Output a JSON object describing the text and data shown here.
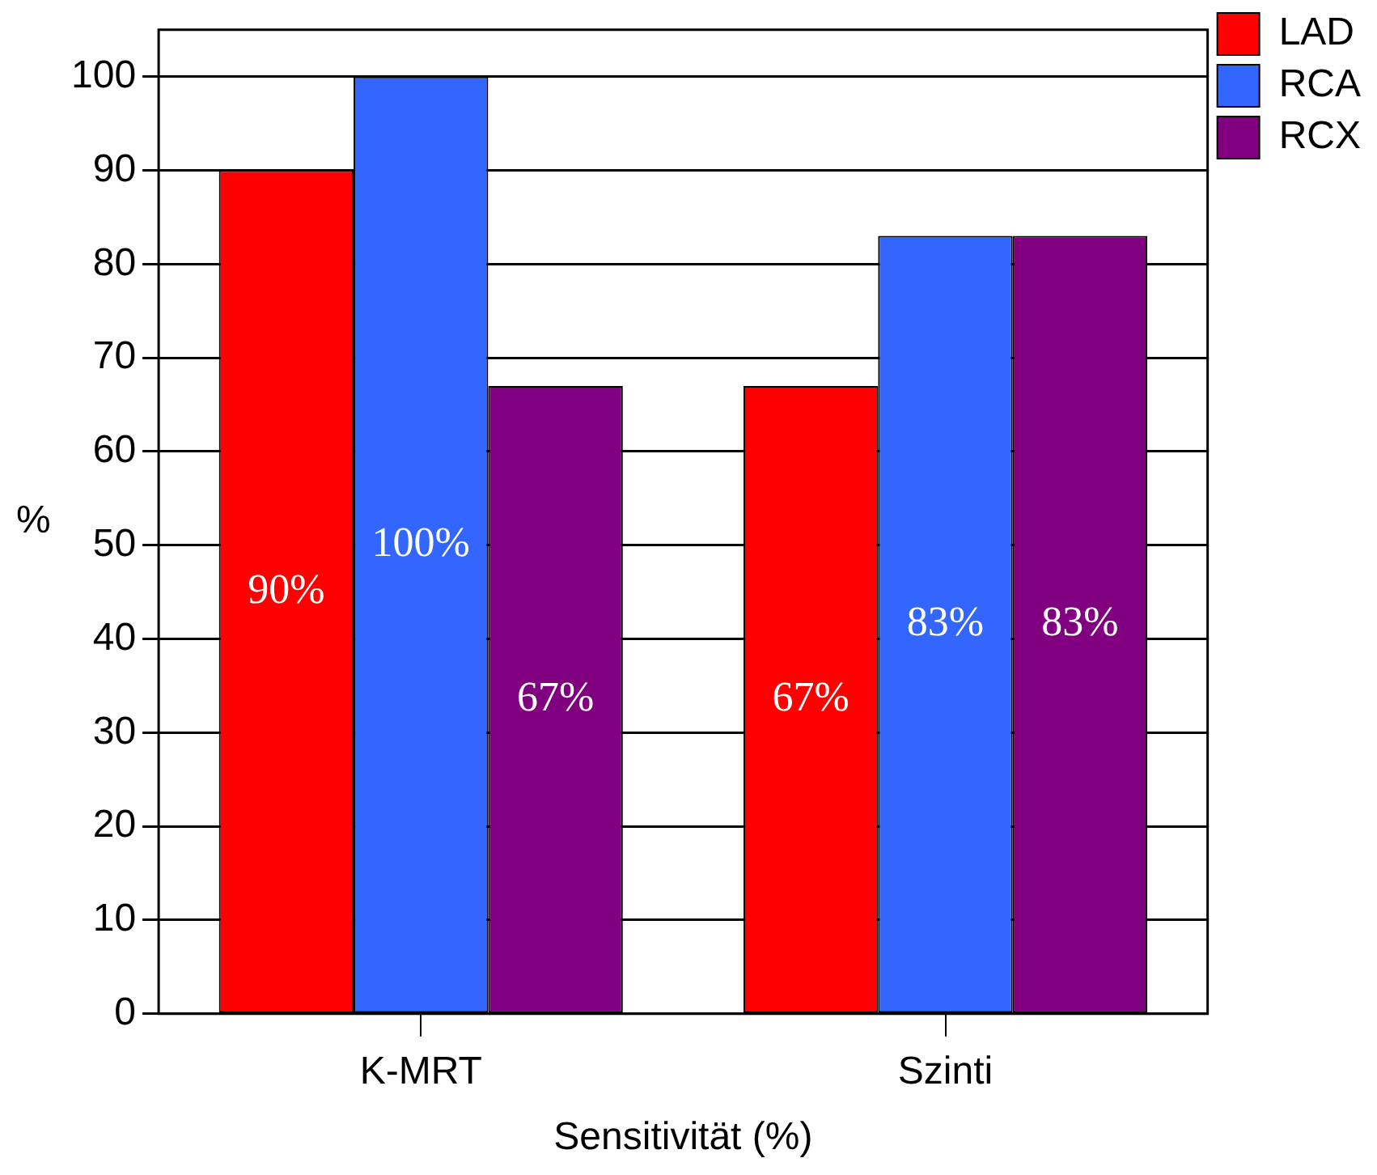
{
  "chart_data": {
    "type": "bar",
    "xlabel": "Sensitivität (%)",
    "ylabel": "%",
    "categories": [
      "K-MRT",
      "Szinti"
    ],
    "series": [
      {
        "name": "LAD",
        "color": "#ff0000",
        "values": [
          90,
          67
        ],
        "value_labels": [
          "90%",
          "67%"
        ]
      },
      {
        "name": "RCA",
        "color": "#3366ff",
        "values": [
          100,
          83
        ],
        "value_labels": [
          "100%",
          "83%"
        ]
      },
      {
        "name": "RCX",
        "color": "#800080",
        "values": [
          67,
          83
        ],
        "value_labels": [
          "67%",
          "83%"
        ]
      }
    ],
    "ylim": [
      0,
      105
    ],
    "yticks": [
      0,
      10,
      20,
      30,
      40,
      50,
      60,
      70,
      80,
      90,
      100
    ],
    "grid": "y",
    "legend": "top right"
  }
}
